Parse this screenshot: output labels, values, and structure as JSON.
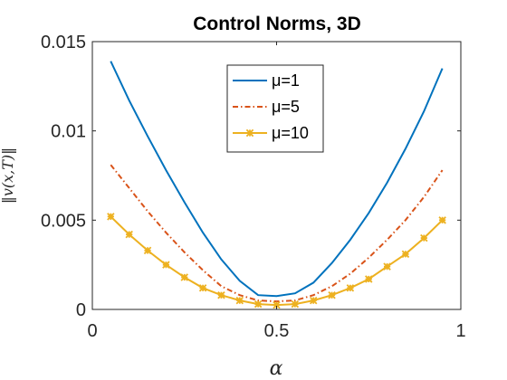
{
  "chart_data": {
    "type": "line",
    "title": "Control Norms, 3D",
    "xlabel": "α",
    "ylabel": "‖v(x,T)‖",
    "xlim": [
      0,
      1
    ],
    "ylim": [
      0,
      0.015
    ],
    "xticks": [
      0,
      0.5,
      1
    ],
    "xtick_labels": [
      "0",
      "0.5",
      "1"
    ],
    "yticks": [
      0,
      0.005,
      0.01,
      0.015
    ],
    "ytick_labels": [
      "0",
      "0.005",
      "0.01",
      "0.015"
    ],
    "grid": false,
    "legend_position": "top-center",
    "x": [
      0.05,
      0.1,
      0.15,
      0.2,
      0.25,
      0.3,
      0.35,
      0.4,
      0.45,
      0.5,
      0.55,
      0.6,
      0.65,
      0.7,
      0.75,
      0.8,
      0.85,
      0.9,
      0.95
    ],
    "series": [
      {
        "name": "μ=1",
        "color": "#0072BD",
        "style": "solid",
        "marker": "none",
        "values": [
          0.0139,
          0.0117,
          0.0097,
          0.0078,
          0.006,
          0.0043,
          0.0028,
          0.0016,
          0.0008,
          0.00075,
          0.0009,
          0.0015,
          0.0026,
          0.0039,
          0.0054,
          0.0071,
          0.009,
          0.0111,
          0.0135
        ]
      },
      {
        "name": "μ=5",
        "color": "#D95319",
        "style": "dashdot",
        "marker": "none",
        "values": [
          0.0081,
          0.0068,
          0.0055,
          0.0043,
          0.0032,
          0.0022,
          0.0013,
          0.0008,
          0.0005,
          0.00045,
          0.0005,
          0.0008,
          0.0013,
          0.002,
          0.0029,
          0.0039,
          0.005,
          0.0063,
          0.0078
        ]
      },
      {
        "name": "μ=10",
        "color": "#EDB120",
        "style": "solid",
        "marker": "asterisk",
        "values": [
          0.0052,
          0.0042,
          0.0033,
          0.0025,
          0.0018,
          0.0012,
          0.0008,
          0.0005,
          0.0003,
          0.00025,
          0.0003,
          0.0005,
          0.0008,
          0.0012,
          0.0017,
          0.0024,
          0.0031,
          0.004,
          0.005
        ]
      }
    ]
  }
}
